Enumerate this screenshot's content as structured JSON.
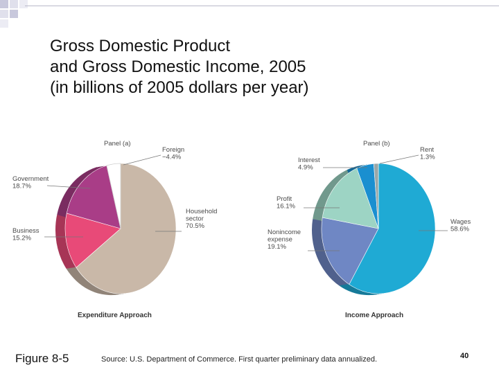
{
  "slide": {
    "title_lines": [
      "Gross Domestic Product",
      "and Gross Domestic Income, 2005",
      "(in billions of 2005 dollars per year)"
    ],
    "figure_label": "Figure 8-5",
    "source": "Source: U.S. Department of Commerce. First quarter preliminary data annualized.",
    "page_number": "40"
  },
  "chart_data": [
    {
      "type": "pie",
      "panel": "Panel (a)",
      "caption": "Expenditure Approach",
      "slices": [
        {
          "label": "Household sector",
          "value_text": "70.5%",
          "value": 70.5,
          "color": "#c9b8a8"
        },
        {
          "label": "Business",
          "value_text": "15.2%",
          "value": 15.2,
          "color": "#e84a78"
        },
        {
          "label": "Government",
          "value_text": "18.7%",
          "value": 18.7,
          "color": "#a93d87"
        },
        {
          "label": "Foreign",
          "value_text": "−4.4%",
          "value": -4.4,
          "color": "#ffffff"
        }
      ]
    },
    {
      "type": "pie",
      "panel": "Panel (b)",
      "caption": "Income Approach",
      "slices": [
        {
          "label": "Wages",
          "value_text": "58.6%",
          "value": 58.6,
          "color": "#1faad4"
        },
        {
          "label": "Nonincome expense",
          "value_text": "19.1%",
          "value": 19.1,
          "color": "#6f87c4"
        },
        {
          "label": "Profit",
          "value_text": "16.1%",
          "value": 16.1,
          "color": "#9dd4c4"
        },
        {
          "label": "Interest",
          "value_text": "4.9%",
          "value": 4.9,
          "color": "#1a8fd0"
        },
        {
          "label": "Rent",
          "value_text": "1.3%",
          "value": 1.3,
          "color": "#9aa7a8"
        }
      ]
    }
  ]
}
